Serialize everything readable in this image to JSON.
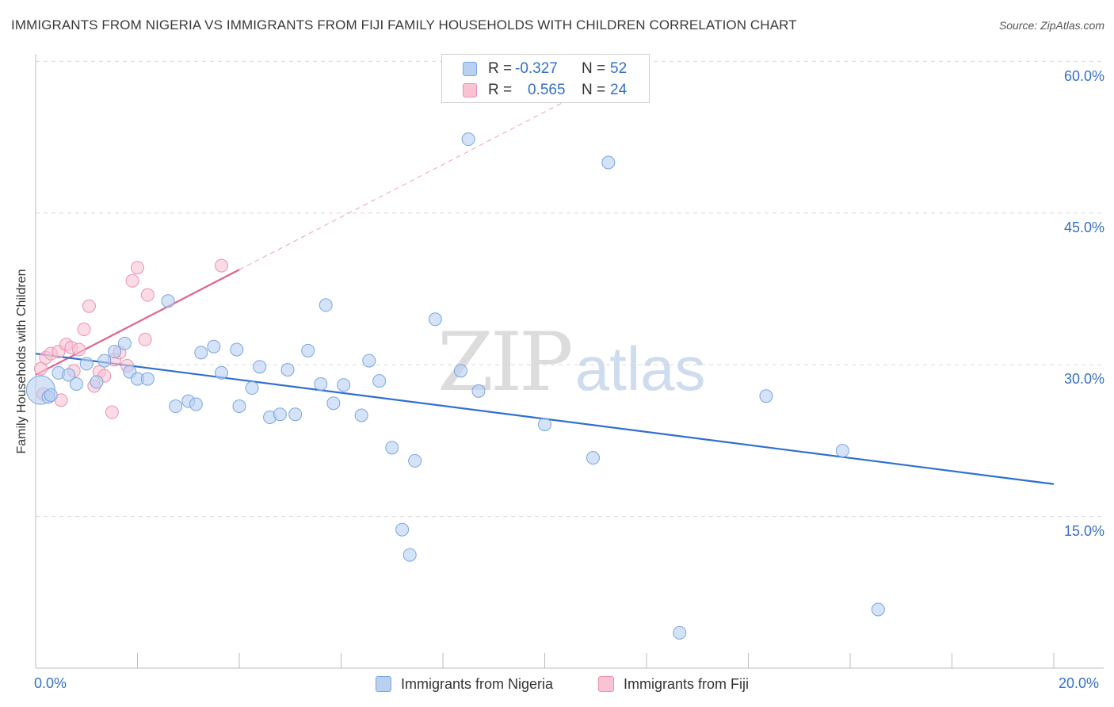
{
  "title": "IMMIGRANTS FROM NIGERIA VS IMMIGRANTS FROM FIJI FAMILY HOUSEHOLDS WITH CHILDREN CORRELATION CHART",
  "source": "Source: ZipAtlas.com",
  "watermark": {
    "zip": "ZIP",
    "atlas": "atlas"
  },
  "legend": {
    "nigeria": {
      "r_label": "R =",
      "r_value": "-0.327",
      "n_label": "N =",
      "n_value": "52"
    },
    "fiji": {
      "r_label": "R =",
      "r_value": "0.565",
      "n_label": "N =",
      "n_value": "24"
    }
  },
  "colors": {
    "nigeria_fill": "#b8d0f2",
    "nigeria_stroke": "#7aa6e0",
    "nigeria_line": "#2f6fd0",
    "fiji_fill": "#f8c3d3",
    "fiji_stroke": "#eb93ad",
    "fiji_line": "#e0648c",
    "tick_text": "#3570c8",
    "grid": "#d8d8d8"
  },
  "chart_data": {
    "type": "scatter",
    "title": "IMMIGRANTS FROM NIGERIA VS IMMIGRANTS FROM FIJI FAMILY HOUSEHOLDS WITH CHILDREN CORRELATION CHART",
    "xlabel": "",
    "ylabel": "Family Households with Children",
    "xlim": [
      0,
      20
    ],
    "ylim": [
      0,
      60
    ],
    "x_tick_labels": [
      "0.0%",
      "20.0%"
    ],
    "y_ticks": [
      15,
      30,
      45,
      60
    ],
    "y_tick_labels": [
      "15.0%",
      "30.0%",
      "45.0%",
      "60.0%"
    ],
    "legend_position": "bottom",
    "series": [
      {
        "name": "Immigrants from Nigeria",
        "R": -0.327,
        "N": 52,
        "points": [
          [
            0.1,
            27.5
          ],
          [
            0.25,
            26.8
          ],
          [
            0.45,
            29.2
          ],
          [
            0.65,
            29.0
          ],
          [
            0.8,
            28.1
          ],
          [
            1.0,
            30.1
          ],
          [
            1.2,
            28.3
          ],
          [
            1.35,
            30.4
          ],
          [
            1.55,
            31.3
          ],
          [
            1.75,
            32.1
          ],
          [
            1.85,
            29.3
          ],
          [
            2.0,
            28.6
          ],
          [
            2.2,
            28.6
          ],
          [
            2.6,
            36.3
          ],
          [
            2.75,
            25.9
          ],
          [
            3.0,
            26.4
          ],
          [
            3.15,
            26.1
          ],
          [
            3.25,
            31.2
          ],
          [
            3.5,
            31.8
          ],
          [
            3.65,
            29.2
          ],
          [
            3.95,
            31.5
          ],
          [
            4.0,
            25.9
          ],
          [
            4.25,
            27.7
          ],
          [
            4.4,
            29.8
          ],
          [
            4.6,
            24.8
          ],
          [
            4.8,
            25.1
          ],
          [
            4.95,
            29.5
          ],
          [
            5.1,
            25.1
          ],
          [
            5.35,
            31.4
          ],
          [
            5.6,
            28.1
          ],
          [
            5.7,
            35.9
          ],
          [
            5.85,
            26.2
          ],
          [
            6.05,
            28.0
          ],
          [
            6.4,
            25.0
          ],
          [
            6.55,
            30.4
          ],
          [
            6.75,
            28.4
          ],
          [
            7.0,
            21.8
          ],
          [
            7.2,
            13.7
          ],
          [
            7.35,
            11.2
          ],
          [
            7.45,
            20.5
          ],
          [
            7.85,
            34.5
          ],
          [
            8.35,
            29.4
          ],
          [
            8.5,
            52.3
          ],
          [
            8.7,
            27.4
          ],
          [
            10.0,
            24.1
          ],
          [
            10.95,
            20.8
          ],
          [
            11.25,
            50.0
          ],
          [
            12.65,
            3.5
          ],
          [
            14.35,
            26.9
          ],
          [
            15.85,
            21.5
          ],
          [
            16.55,
            5.8
          ],
          [
            0.3,
            27.0
          ]
        ],
        "trend_line": {
          "x": [
            0.0,
            20.0
          ],
          "y": [
            31.1,
            18.2
          ]
        }
      },
      {
        "name": "Immigrants from Fiji",
        "R": 0.565,
        "N": 24,
        "points": [
          [
            0.1,
            29.6
          ],
          [
            0.15,
            27.1
          ],
          [
            0.2,
            30.7
          ],
          [
            0.3,
            31.1
          ],
          [
            0.45,
            31.3
          ],
          [
            0.5,
            26.5
          ],
          [
            0.6,
            32.0
          ],
          [
            0.7,
            31.7
          ],
          [
            0.75,
            29.4
          ],
          [
            0.85,
            31.5
          ],
          [
            0.95,
            33.5
          ],
          [
            1.05,
            35.8
          ],
          [
            1.15,
            27.9
          ],
          [
            1.25,
            29.3
          ],
          [
            1.35,
            28.9
          ],
          [
            1.5,
            25.3
          ],
          [
            1.55,
            30.5
          ],
          [
            1.65,
            31.2
          ],
          [
            1.8,
            29.9
          ],
          [
            1.9,
            38.3
          ],
          [
            2.0,
            39.6
          ],
          [
            2.15,
            32.5
          ],
          [
            2.2,
            36.9
          ],
          [
            3.65,
            39.8
          ]
        ],
        "trend_line": {
          "x": [
            0.0,
            4.0
          ],
          "y": [
            29.0,
            39.4
          ]
        },
        "trend_line_extension": {
          "x": [
            4.0,
            10.5
          ],
          "y": [
            39.4,
            56.3
          ]
        }
      }
    ]
  }
}
